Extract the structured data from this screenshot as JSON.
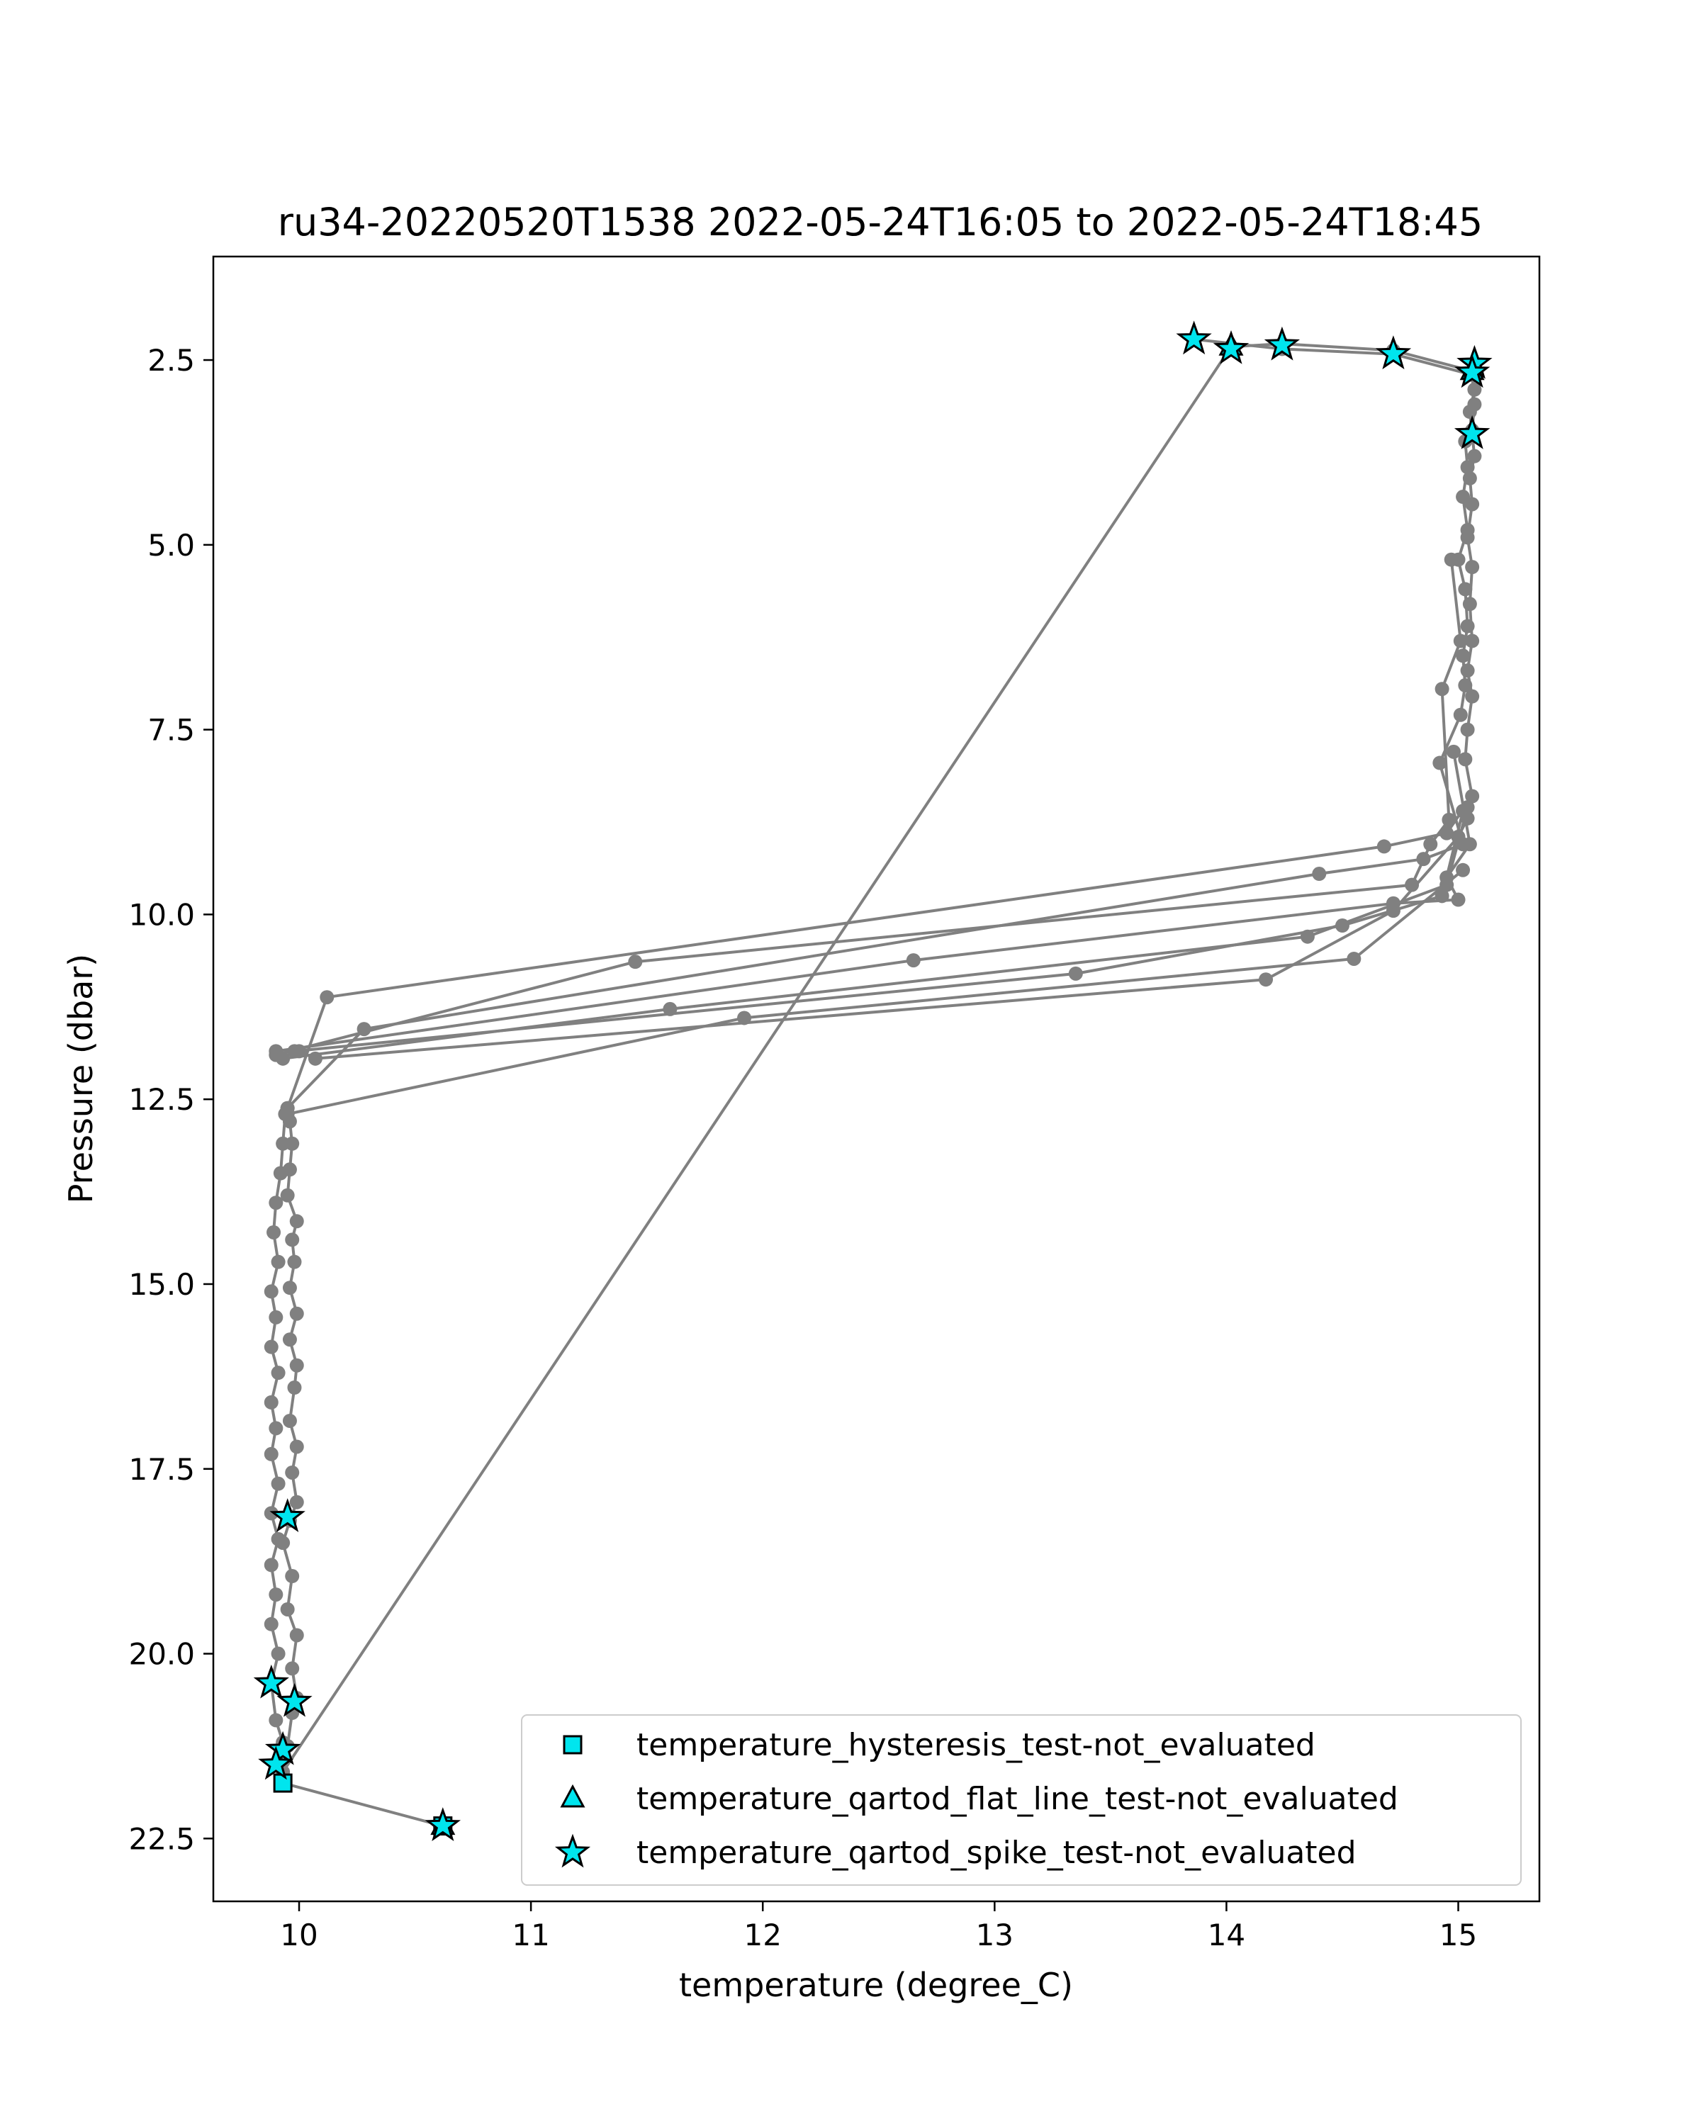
{
  "chart_data": {
    "type": "line",
    "title": "ru34-20220520T1538 2022-05-24T16:05 to 2022-05-24T18:45",
    "xlabel": "temperature (degree_C)",
    "ylabel": "Pressure (dbar)",
    "xlim": [
      9.63,
      15.35
    ],
    "ylim": [
      23.35,
      1.1
    ],
    "y_inverted": true,
    "grid": false,
    "x_ticks": [
      10,
      11,
      12,
      13,
      14,
      15
    ],
    "x_tick_labels": [
      "10",
      "11",
      "12",
      "13",
      "14",
      "15"
    ],
    "y_ticks": [
      2.5,
      5.0,
      7.5,
      10.0,
      12.5,
      15.0,
      17.5,
      20.0,
      22.5
    ],
    "y_tick_labels": [
      "2.5",
      "5.0",
      "7.5",
      "10.0",
      "12.5",
      "15.0",
      "17.5",
      "20.0",
      "22.5"
    ],
    "profile_color": "#808080",
    "marker_fill": "#00e5ee",
    "marker_edge": "#000000",
    "profile_segments": [
      [
        [
          10.62,
          22.33
        ],
        [
          9.93,
          21.75
        ],
        [
          9.91,
          21.5
        ],
        [
          9.95,
          21.25
        ],
        [
          9.97,
          20.8
        ],
        [
          9.99,
          20.6
        ],
        [
          9.97,
          20.2
        ],
        [
          9.99,
          19.75
        ],
        [
          9.95,
          19.4
        ],
        [
          9.97,
          18.95
        ],
        [
          9.93,
          18.5
        ],
        [
          9.96,
          18.2
        ],
        [
          9.99,
          17.95
        ],
        [
          9.97,
          17.55
        ],
        [
          9.99,
          17.2
        ],
        [
          9.96,
          16.85
        ],
        [
          9.98,
          16.4
        ],
        [
          9.99,
          16.1
        ],
        [
          9.96,
          15.75
        ],
        [
          9.99,
          15.4
        ],
        [
          9.96,
          15.05
        ],
        [
          9.98,
          14.7
        ],
        [
          9.97,
          14.4
        ],
        [
          9.99,
          14.15
        ],
        [
          9.95,
          13.8
        ],
        [
          9.96,
          13.45
        ],
        [
          9.97,
          13.1
        ],
        [
          9.96,
          12.8
        ],
        [
          9.95,
          12.62
        ],
        [
          10.12,
          11.12
        ],
        [
          14.68,
          9.08
        ],
        [
          14.95,
          8.9
        ],
        [
          15.06,
          8.4
        ],
        [
          15.03,
          7.9
        ],
        [
          15.04,
          7.5
        ],
        [
          15.06,
          7.05
        ],
        [
          15.04,
          6.7
        ],
        [
          15.06,
          6.3
        ],
        [
          15.05,
          5.8
        ],
        [
          15.06,
          5.3
        ],
        [
          15.04,
          4.9
        ],
        [
          15.06,
          4.45
        ],
        [
          15.05,
          4.1
        ],
        [
          15.07,
          3.8
        ],
        [
          15.06,
          3.5
        ],
        [
          15.05,
          3.2
        ],
        [
          15.07,
          2.9
        ],
        [
          15.06,
          2.65
        ],
        [
          14.72,
          2.37
        ],
        [
          14.24,
          2.28
        ],
        [
          14.02,
          2.32
        ]
      ],
      [
        [
          14.02,
          2.32
        ],
        [
          9.93,
          21.6
        ]
      ],
      [
        [
          9.9,
          21.5
        ],
        [
          9.93,
          21.2
        ],
        [
          9.9,
          20.9
        ],
        [
          9.88,
          20.4
        ],
        [
          9.91,
          20.0
        ],
        [
          9.88,
          19.6
        ],
        [
          9.9,
          19.2
        ],
        [
          9.88,
          18.8
        ],
        [
          9.91,
          18.45
        ],
        [
          9.88,
          18.1
        ],
        [
          9.91,
          17.7
        ],
        [
          9.88,
          17.3
        ],
        [
          9.9,
          16.95
        ],
        [
          9.88,
          16.6
        ],
        [
          9.91,
          16.2
        ],
        [
          9.88,
          15.85
        ],
        [
          9.9,
          15.45
        ],
        [
          9.88,
          15.1
        ],
        [
          9.91,
          14.7
        ],
        [
          9.89,
          14.3
        ],
        [
          9.9,
          13.9
        ],
        [
          9.92,
          13.5
        ],
        [
          9.93,
          13.1
        ],
        [
          9.94,
          12.7
        ],
        [
          9.95,
          12.62
        ],
        [
          10.28,
          11.55
        ],
        [
          14.4,
          9.45
        ],
        [
          14.85,
          9.25
        ],
        [
          15.02,
          9.05
        ],
        [
          14.92,
          7.95
        ],
        [
          15.01,
          7.3
        ],
        [
          15.03,
          6.9
        ],
        [
          15.02,
          6.5
        ],
        [
          15.04,
          6.1
        ],
        [
          15.03,
          5.6
        ],
        [
          15.0,
          5.2
        ],
        [
          15.04,
          4.8
        ],
        [
          15.02,
          4.35
        ],
        [
          15.04,
          3.95
        ],
        [
          15.03,
          3.6
        ],
        [
          15.06,
          3.45
        ],
        [
          15.07,
          3.1
        ],
        [
          15.06,
          2.7
        ],
        [
          14.72,
          2.42
        ],
        [
          14.24,
          2.35
        ],
        [
          13.86,
          2.22
        ]
      ],
      [
        [
          9.9,
          11.9
        ],
        [
          11.45,
          10.64
        ],
        [
          14.8,
          9.6
        ],
        [
          14.88,
          9.05
        ],
        [
          14.96,
          8.72
        ],
        [
          14.93,
          6.95
        ],
        [
          15.01,
          6.3
        ],
        [
          14.97,
          5.2
        ]
      ],
      [
        [
          9.9,
          11.85
        ],
        [
          12.65,
          10.62
        ],
        [
          14.72,
          9.85
        ],
        [
          15.0,
          9.8
        ],
        [
          14.95,
          9.5
        ],
        [
          15.05,
          9.05
        ],
        [
          14.98,
          7.8
        ]
      ],
      [
        [
          9.98,
          11.85
        ],
        [
          13.35,
          10.8
        ],
        [
          14.5,
          10.15
        ],
        [
          14.93,
          9.75
        ],
        [
          15.02,
          8.6
        ]
      ],
      [
        [
          9.93,
          11.95
        ],
        [
          11.6,
          11.28
        ],
        [
          14.35,
          10.3
        ],
        [
          14.95,
          9.6
        ],
        [
          15.04,
          8.55
        ]
      ],
      [
        [
          9.95,
          12.7
        ],
        [
          11.92,
          11.4
        ],
        [
          14.55,
          10.6
        ],
        [
          15.02,
          9.4
        ]
      ],
      [
        [
          10.0,
          11.85
        ],
        [
          10.07,
          11.95
        ],
        [
          14.17,
          10.88
        ],
        [
          14.72,
          9.95
        ],
        [
          15.0,
          8.95
        ],
        [
          15.04,
          8.7
        ]
      ]
    ],
    "flag_series": [
      {
        "name": "temperature_hysteresis_test-not_evaluated",
        "marker": "square",
        "points": [
          [
            9.93,
            21.75
          ],
          [
            10.62,
            22.33
          ]
        ]
      },
      {
        "name": "temperature_qartod_flat_line_test-not_evaluated",
        "marker": "triangle",
        "points": [
          [
            14.02,
            2.32
          ],
          [
            15.06,
            2.65
          ],
          [
            10.62,
            22.33
          ]
        ]
      },
      {
        "name": "temperature_qartod_spike_test-not_evaluated",
        "marker": "star",
        "points": [
          [
            13.86,
            2.22
          ],
          [
            14.02,
            2.35
          ],
          [
            14.24,
            2.3
          ],
          [
            14.72,
            2.42
          ],
          [
            15.07,
            2.55
          ],
          [
            15.06,
            2.67
          ],
          [
            15.06,
            3.5
          ],
          [
            9.95,
            18.15
          ],
          [
            9.88,
            20.4
          ],
          [
            9.98,
            20.65
          ],
          [
            9.93,
            21.3
          ],
          [
            9.9,
            21.5
          ],
          [
            10.62,
            22.33
          ]
        ]
      }
    ],
    "legend": {
      "location": "lower-right",
      "entries": [
        {
          "label": "temperature_hysteresis_test-not_evaluated",
          "marker": "square"
        },
        {
          "label": "temperature_qartod_flat_line_test-not_evaluated",
          "marker": "triangle"
        },
        {
          "label": "temperature_qartod_spike_test-not_evaluated",
          "marker": "star"
        }
      ]
    }
  }
}
